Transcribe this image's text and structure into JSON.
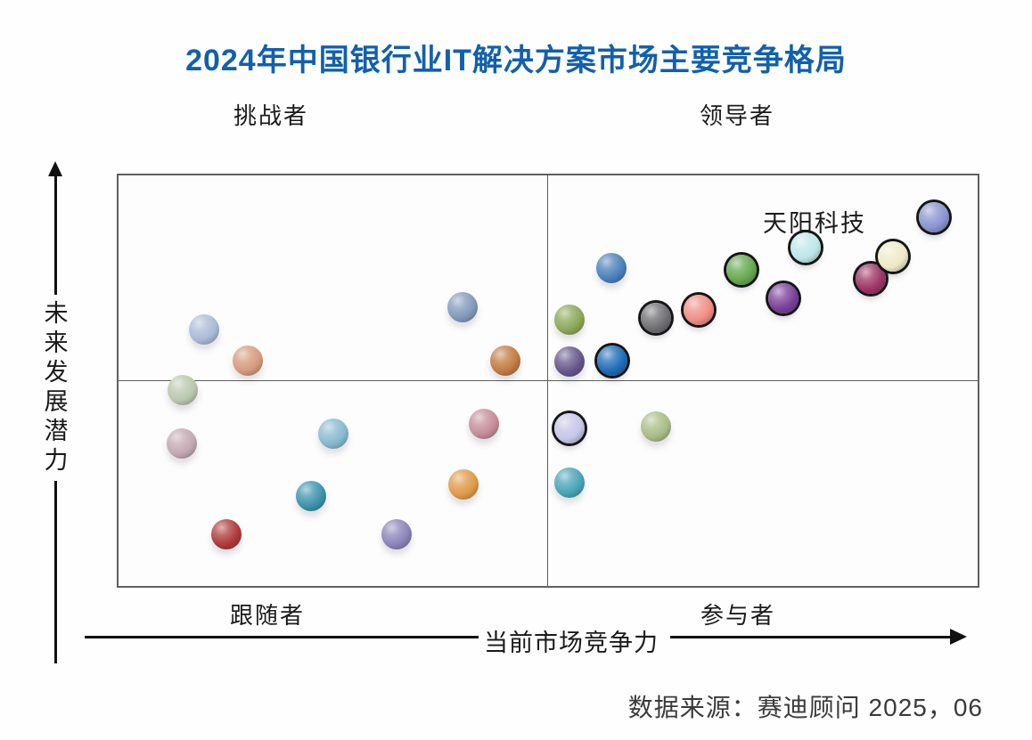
{
  "title": "2024年中国银行业IT解决方案市场主要竞争格局",
  "quadrant_labels": {
    "top_left": "挑战者",
    "top_right": "领导者",
    "bottom_left": "跟随者",
    "bottom_right": "参与者"
  },
  "axis": {
    "x_label": "当前市场竞争力",
    "y_label": "未来发展潜力"
  },
  "annotation": "天阳科技",
  "source": "数据来源：赛迪顾问 2025，06",
  "colors": {
    "title": "#1160ae",
    "border": "#5f5f5f",
    "axis": "#111111",
    "ring": "#151515",
    "source_text": "#3a3a3a"
  },
  "chart_data": {
    "type": "scatter",
    "title": "2024年中国银行业IT解决方案市场主要竞争格局",
    "xlabel": "当前市场竞争力",
    "ylabel": "未来发展潜力",
    "x_range": [
      0,
      100
    ],
    "y_range": [
      0,
      100
    ],
    "grid": "quadrant-cross at x=50, y=50",
    "legend": "none",
    "quadrants": {
      "top_left": "挑战者",
      "top_right": "领导者",
      "bottom_left": "跟随者",
      "bottom_right": "参与者"
    },
    "points": [
      {
        "x": 10.0,
        "y": 62.4,
        "color": "#a9bad6",
        "ring": false,
        "label": ""
      },
      {
        "x": 15.0,
        "y": 54.8,
        "color": "#d59a7c",
        "ring": false,
        "label": ""
      },
      {
        "x": 40.0,
        "y": 68.0,
        "color": "#8299bb",
        "ring": false,
        "label": ""
      },
      {
        "x": 45.0,
        "y": 54.8,
        "color": "#c17a42",
        "ring": false,
        "label": ""
      },
      {
        "x": 7.5,
        "y": 47.7,
        "color": "#b9c7ae",
        "ring": false,
        "label": ""
      },
      {
        "x": 7.4,
        "y": 34.6,
        "color": "#c3a8b2",
        "ring": false,
        "label": ""
      },
      {
        "x": 25.0,
        "y": 37.2,
        "color": "#85b9cf",
        "ring": false,
        "label": ""
      },
      {
        "x": 42.5,
        "y": 39.4,
        "color": "#c48d99",
        "ring": false,
        "label": ""
      },
      {
        "x": 22.4,
        "y": 21.9,
        "color": "#3b93ab",
        "ring": false,
        "label": ""
      },
      {
        "x": 40.1,
        "y": 24.7,
        "color": "#df9a45",
        "ring": false,
        "label": ""
      },
      {
        "x": 12.5,
        "y": 12.5,
        "color": "#ad3a3a",
        "ring": false,
        "label": ""
      },
      {
        "x": 32.4,
        "y": 12.5,
        "color": "#8a84b8",
        "ring": false,
        "label": ""
      },
      {
        "x": 57.4,
        "y": 77.4,
        "color": "#4a7fba",
        "ring": false,
        "label": ""
      },
      {
        "x": 52.5,
        "y": 64.9,
        "color": "#8ba757",
        "ring": false,
        "label": ""
      },
      {
        "x": 52.5,
        "y": 54.6,
        "color": "#65568a",
        "ring": false,
        "label": ""
      },
      {
        "x": 57.5,
        "y": 54.8,
        "color": "#1f6cb8",
        "ring": true,
        "label": ""
      },
      {
        "x": 62.5,
        "y": 65.2,
        "color": "#707074",
        "ring": true,
        "label": ""
      },
      {
        "x": 67.5,
        "y": 67.3,
        "color": "#ef8d85",
        "ring": true,
        "label": ""
      },
      {
        "x": 72.5,
        "y": 77.0,
        "color": "#67a84e",
        "ring": true,
        "label": ""
      },
      {
        "x": 80.0,
        "y": 82.4,
        "color": "#bfe6e9",
        "ring": true,
        "label": "天阳科技"
      },
      {
        "x": 77.4,
        "y": 70.1,
        "color": "#7a3f9a",
        "ring": true,
        "label": ""
      },
      {
        "x": 87.6,
        "y": 74.8,
        "color": "#9e3566",
        "ring": true,
        "label": ""
      },
      {
        "x": 90.1,
        "y": 80.2,
        "color": "#eee9c6",
        "ring": true,
        "label": ""
      },
      {
        "x": 94.9,
        "y": 89.9,
        "color": "#8a94ce",
        "ring": true,
        "label": ""
      },
      {
        "x": 52.5,
        "y": 38.3,
        "color": "#c6c6e8",
        "ring": true,
        "label": ""
      },
      {
        "x": 62.6,
        "y": 38.9,
        "color": "#a9bc85",
        "ring": false,
        "label": ""
      },
      {
        "x": 52.5,
        "y": 25.2,
        "color": "#47a4b6",
        "ring": false,
        "label": ""
      }
    ]
  }
}
